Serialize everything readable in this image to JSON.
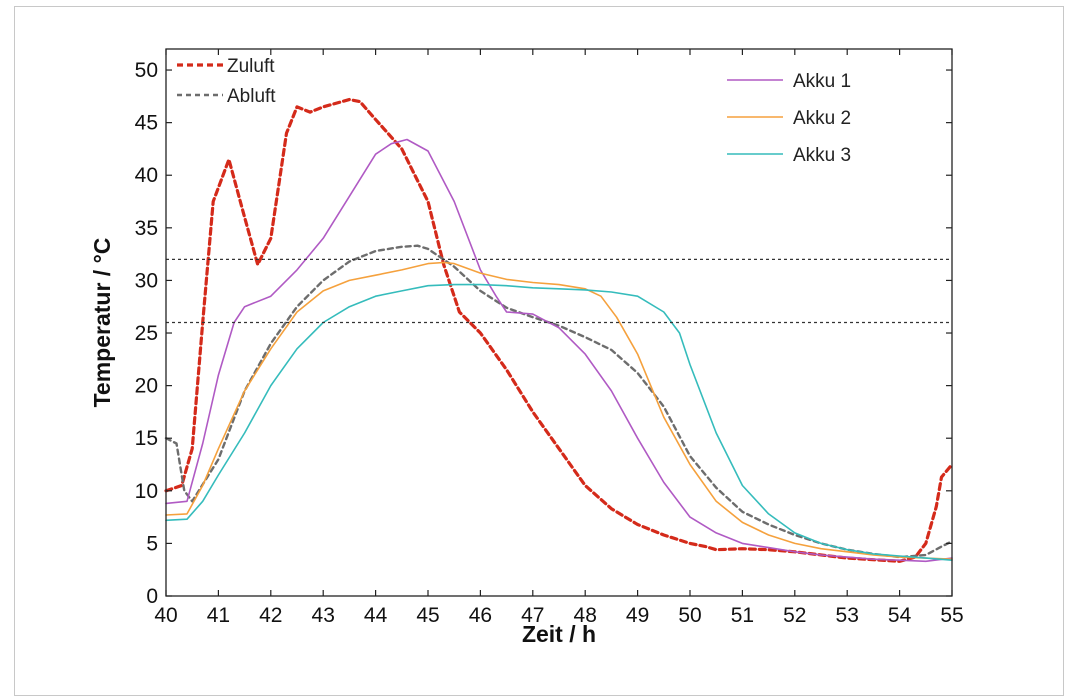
{
  "chart_data": {
    "type": "line",
    "xlabel": "Zeit / h",
    "ylabel": "Temperatur / °C",
    "xlim": [
      40,
      55
    ],
    "ylim": [
      0,
      52
    ],
    "x_ticks": [
      "40",
      "41",
      "42",
      "43",
      "44",
      "45",
      "46",
      "47",
      "48",
      "49",
      "50",
      "51",
      "52",
      "53",
      "54",
      "55"
    ],
    "y_ticks": [
      "0",
      "5",
      "10",
      "15",
      "20",
      "25",
      "30",
      "35",
      "40",
      "45",
      "50"
    ],
    "grid": false,
    "legend_left": [
      "Zuluft",
      "Abluft"
    ],
    "legend_right": [
      "Akku 1",
      "Akku 2",
      "Akku 3"
    ],
    "reference_lines": [
      32,
      26
    ],
    "series": [
      {
        "name": "Zuluft",
        "color": "#d42a1a",
        "style": "dashed-heavy",
        "points": [
          [
            40,
            10
          ],
          [
            40.3,
            10.5
          ],
          [
            40.5,
            14
          ],
          [
            40.7,
            26
          ],
          [
            40.9,
            37.5
          ],
          [
            41.2,
            41.5
          ],
          [
            41.5,
            36
          ],
          [
            41.75,
            31.5
          ],
          [
            42,
            34
          ],
          [
            42.3,
            44
          ],
          [
            42.5,
            46.5
          ],
          [
            42.75,
            46
          ],
          [
            43,
            46.5
          ],
          [
            43.5,
            47.2
          ],
          [
            43.7,
            47
          ],
          [
            44,
            45.3
          ],
          [
            44.5,
            42.5
          ],
          [
            44.8,
            39.5
          ],
          [
            45,
            37.5
          ],
          [
            45.3,
            31.5
          ],
          [
            45.6,
            27
          ],
          [
            46,
            25
          ],
          [
            46.5,
            21.5
          ],
          [
            47,
            17.5
          ],
          [
            47.5,
            14
          ],
          [
            48,
            10.5
          ],
          [
            48.5,
            8.3
          ],
          [
            49,
            6.8
          ],
          [
            49.5,
            5.8
          ],
          [
            50,
            5
          ],
          [
            50.3,
            4.7
          ],
          [
            50.5,
            4.4
          ],
          [
            51,
            4.5
          ],
          [
            51.5,
            4.4
          ],
          [
            52,
            4.2
          ],
          [
            53,
            3.6
          ],
          [
            54,
            3.3
          ],
          [
            54.3,
            3.7
          ],
          [
            54.5,
            5
          ],
          [
            54.7,
            8.5
          ],
          [
            54.8,
            11.3
          ],
          [
            55,
            12.5
          ]
        ]
      },
      {
        "name": "Abluft",
        "color": "#6d6d6d",
        "style": "dashed",
        "points": [
          [
            40,
            15
          ],
          [
            40.2,
            14.5
          ],
          [
            40.35,
            10
          ],
          [
            40.5,
            9
          ],
          [
            41,
            13
          ],
          [
            41.5,
            19.5
          ],
          [
            42,
            24
          ],
          [
            42.5,
            27.5
          ],
          [
            43,
            30
          ],
          [
            43.5,
            31.8
          ],
          [
            44,
            32.8
          ],
          [
            44.5,
            33.2
          ],
          [
            44.8,
            33.3
          ],
          [
            45,
            33
          ],
          [
            45.5,
            31.3
          ],
          [
            46,
            29
          ],
          [
            46.5,
            27.4
          ],
          [
            47,
            26.5
          ],
          [
            47.5,
            25.7
          ],
          [
            48,
            24.6
          ],
          [
            48.5,
            23.4
          ],
          [
            49,
            21.2
          ],
          [
            49.5,
            18
          ],
          [
            50,
            13.3
          ],
          [
            50.5,
            10.3
          ],
          [
            51,
            8
          ],
          [
            51.5,
            6.8
          ],
          [
            52,
            5.8
          ],
          [
            52.5,
            5
          ],
          [
            53,
            4.4
          ],
          [
            53.5,
            4
          ],
          [
            54,
            3.7
          ],
          [
            54.5,
            3.9
          ],
          [
            54.8,
            4.7
          ],
          [
            55,
            5.2
          ]
        ]
      },
      {
        "name": "Akku 1",
        "color": "#b05ac4",
        "style": "solid",
        "points": [
          [
            40,
            8.8
          ],
          [
            40.4,
            9
          ],
          [
            40.7,
            14.5
          ],
          [
            41,
            21
          ],
          [
            41.3,
            26
          ],
          [
            41.5,
            27.5
          ],
          [
            42,
            28.5
          ],
          [
            42.5,
            31
          ],
          [
            43,
            34
          ],
          [
            43.5,
            38
          ],
          [
            44,
            42
          ],
          [
            44.3,
            43
          ],
          [
            44.6,
            43.4
          ],
          [
            45,
            42.3
          ],
          [
            45.5,
            37.5
          ],
          [
            46,
            31
          ],
          [
            46.3,
            28.5
          ],
          [
            46.5,
            27
          ],
          [
            47,
            26.8
          ],
          [
            47.5,
            25.5
          ],
          [
            48,
            23
          ],
          [
            48.5,
            19.5
          ],
          [
            49,
            15
          ],
          [
            49.5,
            10.8
          ],
          [
            50,
            7.5
          ],
          [
            50.5,
            6
          ],
          [
            51,
            5
          ],
          [
            51.5,
            4.6
          ],
          [
            52,
            4.2
          ],
          [
            52.5,
            3.9
          ],
          [
            53,
            3.7
          ],
          [
            53.5,
            3.5
          ],
          [
            54,
            3.4
          ],
          [
            54.5,
            3.3
          ],
          [
            55,
            3.6
          ]
        ]
      },
      {
        "name": "Akku 2",
        "color": "#f5a13d",
        "style": "solid",
        "points": [
          [
            40,
            7.7
          ],
          [
            40.4,
            7.8
          ],
          [
            40.7,
            10.5
          ],
          [
            41,
            14
          ],
          [
            41.5,
            19.5
          ],
          [
            42,
            23.5
          ],
          [
            42.5,
            27
          ],
          [
            43,
            29
          ],
          [
            43.5,
            30
          ],
          [
            44,
            30.5
          ],
          [
            44.5,
            31
          ],
          [
            45,
            31.6
          ],
          [
            45.3,
            31.7
          ],
          [
            45.5,
            31.6
          ],
          [
            46,
            30.7
          ],
          [
            46.5,
            30.1
          ],
          [
            47,
            29.8
          ],
          [
            47.5,
            29.6
          ],
          [
            48,
            29.2
          ],
          [
            48.3,
            28.5
          ],
          [
            48.6,
            26.5
          ],
          [
            49,
            23
          ],
          [
            49.5,
            17
          ],
          [
            50,
            12.5
          ],
          [
            50.5,
            9
          ],
          [
            51,
            7
          ],
          [
            51.5,
            5.8
          ],
          [
            52,
            5
          ],
          [
            52.5,
            4.5
          ],
          [
            53,
            4.2
          ],
          [
            53.5,
            3.9
          ],
          [
            54,
            3.7
          ],
          [
            54.5,
            3.6
          ],
          [
            55,
            3.5
          ]
        ]
      },
      {
        "name": "Akku 3",
        "color": "#35bcbc",
        "style": "solid",
        "points": [
          [
            40,
            7.2
          ],
          [
            40.4,
            7.3
          ],
          [
            40.7,
            9
          ],
          [
            41,
            11.5
          ],
          [
            41.5,
            15.5
          ],
          [
            42,
            20
          ],
          [
            42.5,
            23.5
          ],
          [
            43,
            26
          ],
          [
            43.5,
            27.5
          ],
          [
            44,
            28.5
          ],
          [
            44.5,
            29
          ],
          [
            45,
            29.5
          ],
          [
            45.5,
            29.6
          ],
          [
            46,
            29.6
          ],
          [
            46.5,
            29.5
          ],
          [
            47,
            29.3
          ],
          [
            47.5,
            29.2
          ],
          [
            48,
            29.1
          ],
          [
            48.5,
            28.9
          ],
          [
            49,
            28.5
          ],
          [
            49.5,
            27
          ],
          [
            49.8,
            25
          ],
          [
            50,
            22
          ],
          [
            50.5,
            15.5
          ],
          [
            51,
            10.5
          ],
          [
            51.5,
            7.8
          ],
          [
            52,
            6
          ],
          [
            52.5,
            5
          ],
          [
            53,
            4.4
          ],
          [
            53.5,
            4
          ],
          [
            54,
            3.8
          ],
          [
            54.5,
            3.6
          ],
          [
            55,
            3.4
          ]
        ]
      }
    ]
  }
}
